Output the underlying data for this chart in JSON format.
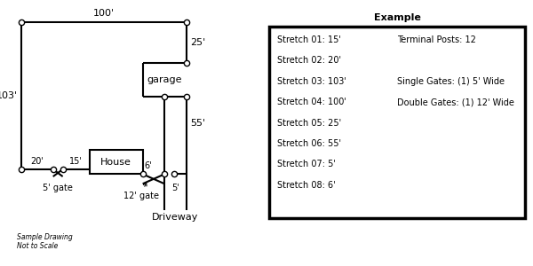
{
  "title": "Example",
  "stretches": [
    "Stretch 01: 15'",
    "Stretch 02: 20'",
    "Stretch 03: 103'",
    "Stretch 04: 100'",
    "Stretch 05: 25'",
    "Stretch 06: 55'",
    "Stretch 07: 5'",
    "Stretch 08: 6'"
  ],
  "right_col_items": [
    {
      "text": "Terminal Posts: 12",
      "row": 0
    },
    {
      "text": "Single Gates: (1) 5' Wide",
      "row": 2
    },
    {
      "text": "Double Gates: (1) 12' Wide",
      "row": 3
    }
  ],
  "fence_color": "black",
  "post_fc": "white",
  "post_ec": "black",
  "bg_color": "white",
  "sample_note": "Sample Drawing\nNot to Scale",
  "title_fontsize": 8,
  "label_fontsize": 7,
  "stretch_fontsize": 7,
  "post_ms": 4.5
}
